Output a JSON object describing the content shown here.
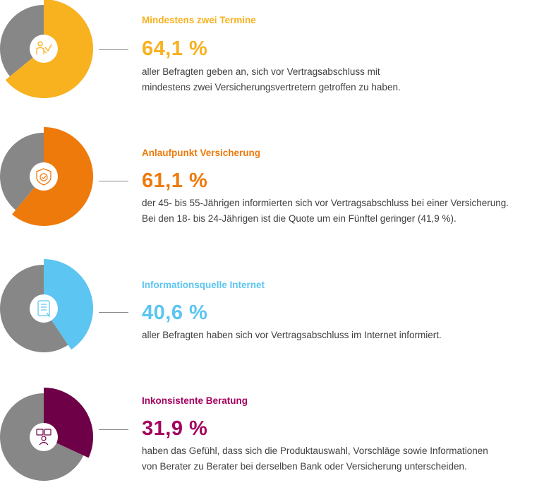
{
  "chart_data": [
    {
      "type": "pie",
      "title": "Mindestens zwei Termine",
      "value_label": "64,1 %",
      "values": [
        64.1,
        35.9
      ],
      "colors": [
        "#f8b11f",
        "#878787"
      ],
      "icon": "people-handshake-icon",
      "description": [
        "aller Befragten geben an, sich vor Vertragsabschluss mit",
        "mindestens zwei Versicherungsvertretern getroffen zu haben."
      ]
    },
    {
      "type": "pie",
      "title": "Anlaufpunkt Versicherung",
      "value_label": "61,1 %",
      "values": [
        61.1,
        38.9
      ],
      "colors": [
        "#ee7a0b",
        "#878787"
      ],
      "icon": "shield-check-icon",
      "description": [
        "der 45- bis 55-Jährigen informierten sich vor Vertragsabschluss bei einer Versicherung.",
        "Bei den 18- bis 24-Jährigen ist die Quote um ein Fünftel geringer (41,9 %)."
      ]
    },
    {
      "type": "pie",
      "title": "Informationsquelle Internet",
      "value_label": "40,6 %",
      "values": [
        40.6,
        59.4
      ],
      "colors": [
        "#5cc5f2",
        "#878787"
      ],
      "icon": "tablet-document-icon",
      "description": [
        "aller Befragten haben sich vor Vertragsabschluss im Internet informiert."
      ]
    },
    {
      "type": "pie",
      "title": "Inkonsistente Beratung",
      "value_label": "31,9 %",
      "values": [
        31.9,
        68.1
      ],
      "colors": [
        "#6d0046",
        "#878787"
      ],
      "icon": "speech-bubbles-person-icon",
      "description": [
        "haben das Gefühl, dass sich die Produktauswahl, Vorschläge sowie Informationen",
        "von Berater zu Berater bei derselben Bank oder Versicherung unterscheiden."
      ]
    }
  ],
  "theme": {
    "title_colors": [
      "#f8b11f",
      "#ee7a0b",
      "#5cc5f2",
      "#a3005f"
    ],
    "grey": "#878787"
  }
}
